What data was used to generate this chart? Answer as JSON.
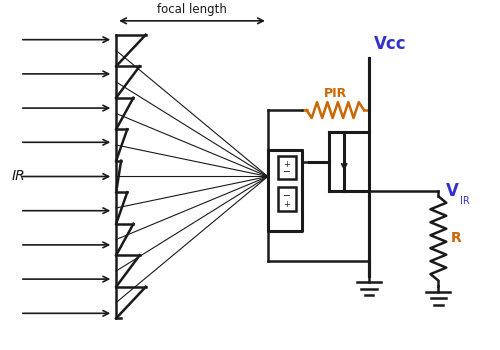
{
  "bg_color": "#ffffff",
  "lc": "#1a1a1a",
  "oc": "#cc6600",
  "bc": "#3333cc",
  "focal_label": "focal length",
  "ir_label": "IR",
  "vcc_label": "Vcc",
  "pir_label": "PIR",
  "vir_label": "V",
  "vir_sub": "IR",
  "r_label": "R"
}
